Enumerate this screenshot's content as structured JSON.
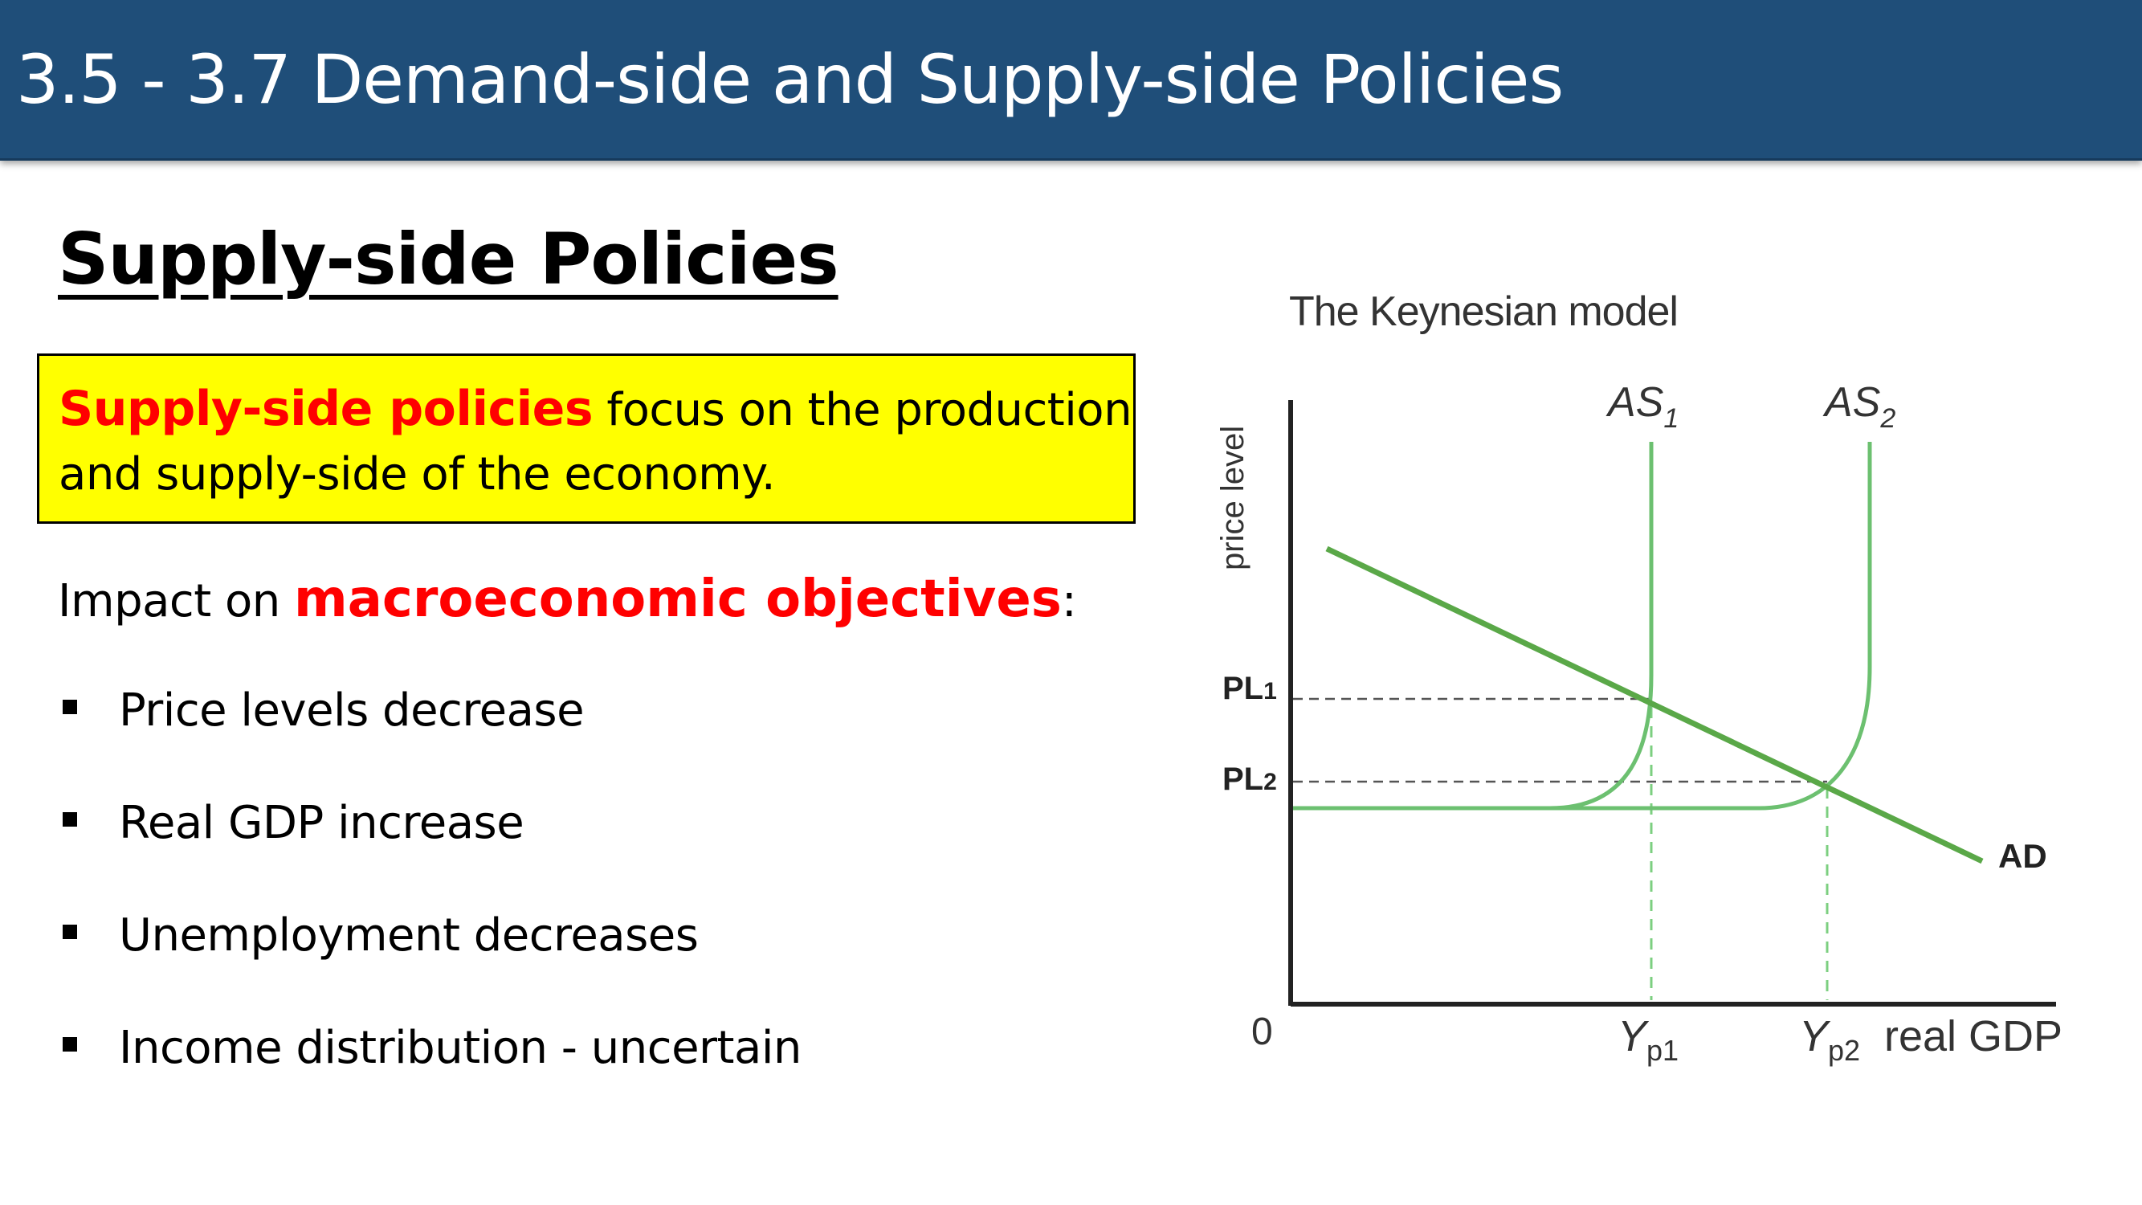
{
  "header": {
    "title": "3.5 - 3.7 Demand-side and Supply-side Policies"
  },
  "section": {
    "heading": "Supply-side Policies"
  },
  "definition": {
    "term": "Supply-side policies",
    "rest_line1": " focus on the production",
    "line2": "and supply-side of the economy."
  },
  "impact": {
    "prefix": "Impact on ",
    "keyword": "macroeconomic objectives",
    "suffix": ":"
  },
  "bullets": [
    "Price levels decrease",
    "Real GDP increase",
    "Unemployment decreases",
    "Income distribution - uncertain"
  ],
  "colors": {
    "title_bar": "#1f4e79",
    "highlight_box": "#ffff00",
    "accent_red": "#ff0000",
    "curve_green": "#6cc070",
    "ad_green": "#5aa848"
  },
  "chart_data": {
    "type": "line",
    "title": "The Keynesian model",
    "xlabel": "real GDP",
    "ylabel": "price level",
    "origin_label": "0",
    "x_ticks": [
      {
        "label": "Y",
        "sub": "p1",
        "value": 1
      },
      {
        "label": "Y",
        "sub": "p2",
        "value": 2
      }
    ],
    "y_ticks": [
      {
        "label": "PL",
        "sub": "1",
        "value": 1
      },
      {
        "label": "PL",
        "sub": "2",
        "value": 2
      }
    ],
    "series": [
      {
        "name": "AS",
        "sub": "1",
        "shape": "Keynesian aggregate supply, vertical at Yp1"
      },
      {
        "name": "AS",
        "sub": "2",
        "shape": "Keynesian aggregate supply, vertical at Yp2"
      },
      {
        "name": "AD",
        "sub": "",
        "shape": "downward sloping aggregate demand"
      }
    ],
    "equilibria": [
      {
        "price": "PL1",
        "output": "Yp1"
      },
      {
        "price": "PL2",
        "output": "Yp2"
      }
    ],
    "grid": false,
    "guide_lines": "dashed"
  }
}
